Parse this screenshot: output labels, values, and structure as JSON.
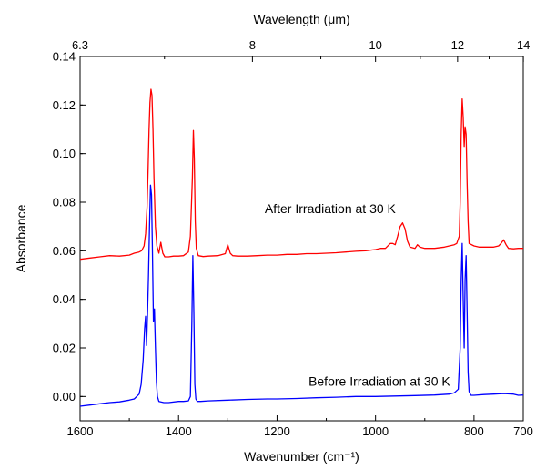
{
  "chart_data": {
    "type": "line",
    "title": "",
    "xlabel": "Wavenumber (cm⁻¹)",
    "ylabel": "Absorbance",
    "top_xlabel": "Wavelength (μm)",
    "xlim": [
      1600,
      700
    ],
    "ylim": [
      -0.01,
      0.14
    ],
    "x_ticks": [
      1600,
      1400,
      1200,
      1000,
      800,
      700
    ],
    "y_ticks": [
      0.0,
      0.02,
      0.04,
      0.06,
      0.08,
      0.1,
      0.12,
      0.14
    ],
    "y_tick_labels": [
      "0.00",
      "0.02",
      "0.04",
      "0.06",
      "0.08",
      "0.10",
      "0.12",
      "0.14"
    ],
    "top_ticks": [
      {
        "label": "6.3",
        "wavelength_um": 6.25
      },
      {
        "label": "8",
        "wavelength_um": 8
      },
      {
        "label": "10",
        "wavelength_um": 10
      },
      {
        "label": "12",
        "wavelength_um": 12
      },
      {
        "label": "14",
        "wavelength_um": 14.29
      }
    ],
    "grid": false,
    "series": [
      {
        "color": "#ff0000",
        "annotation": "After Irradiation at 30 K",
        "annotation_pos": [
          1225,
          0.0755
        ],
        "x": [
          1600,
          1580,
          1560,
          1540,
          1520,
          1500,
          1490,
          1480,
          1475,
          1470,
          1467,
          1464,
          1462,
          1460,
          1458,
          1456,
          1454,
          1452,
          1450,
          1447,
          1444,
          1440,
          1436,
          1432,
          1428,
          1420,
          1410,
          1400,
          1390,
          1380,
          1376,
          1372,
          1370,
          1368,
          1366,
          1364,
          1360,
          1350,
          1340,
          1320,
          1305,
          1300,
          1295,
          1290,
          1280,
          1260,
          1240,
          1220,
          1200,
          1180,
          1160,
          1140,
          1120,
          1100,
          1080,
          1060,
          1040,
          1020,
          1000,
          990,
          980,
          970,
          965,
          960,
          955,
          950,
          945,
          940,
          935,
          930,
          920,
          915,
          910,
          900,
          880,
          860,
          850,
          840,
          835,
          830,
          828,
          826,
          824,
          822,
          820,
          818,
          816,
          814,
          812,
          810,
          800,
          790,
          780,
          760,
          750,
          745,
          740,
          735,
          730,
          720,
          710,
          700
        ],
        "y": [
          0.0565,
          0.057,
          0.0575,
          0.058,
          0.0578,
          0.0582,
          0.059,
          0.0595,
          0.06,
          0.062,
          0.067,
          0.078,
          0.093,
          0.11,
          0.121,
          0.1265,
          0.124,
          0.11,
          0.09,
          0.07,
          0.062,
          0.059,
          0.0635,
          0.059,
          0.0575,
          0.0575,
          0.0578,
          0.0578,
          0.058,
          0.0595,
          0.066,
          0.09,
          0.1095,
          0.098,
          0.072,
          0.061,
          0.058,
          0.0576,
          0.0578,
          0.058,
          0.0588,
          0.0625,
          0.059,
          0.058,
          0.0578,
          0.0578,
          0.058,
          0.0582,
          0.0582,
          0.0585,
          0.0585,
          0.0588,
          0.0588,
          0.059,
          0.0592,
          0.0595,
          0.0598,
          0.06,
          0.0605,
          0.061,
          0.061,
          0.063,
          0.063,
          0.0625,
          0.066,
          0.07,
          0.0715,
          0.069,
          0.064,
          0.0615,
          0.061,
          0.0625,
          0.0615,
          0.061,
          0.061,
          0.0615,
          0.062,
          0.0625,
          0.063,
          0.066,
          0.08,
          0.108,
          0.1225,
          0.115,
          0.103,
          0.111,
          0.108,
          0.088,
          0.072,
          0.063,
          0.062,
          0.0615,
          0.0615,
          0.0615,
          0.062,
          0.063,
          0.0645,
          0.0625,
          0.061,
          0.0608,
          0.061,
          0.061
        ]
      },
      {
        "color": "#0000ff",
        "annotation": "Before Irradiation at 30 K",
        "annotation_pos": [
          1136,
          0.0045
        ],
        "x": [
          1600,
          1580,
          1560,
          1540,
          1520,
          1500,
          1490,
          1480,
          1476,
          1472,
          1469,
          1467,
          1465,
          1463,
          1461,
          1459,
          1457,
          1455,
          1453,
          1451,
          1449,
          1447,
          1445,
          1443,
          1440,
          1430,
          1420,
          1400,
          1390,
          1380,
          1376,
          1373,
          1371,
          1369,
          1367,
          1365,
          1362,
          1355,
          1340,
          1300,
          1260,
          1220,
          1200,
          1160,
          1120,
          1080,
          1040,
          1000,
          960,
          920,
          880,
          850,
          840,
          832,
          828,
          826,
          824,
          822,
          820,
          818,
          816,
          814,
          812,
          810,
          806,
          800,
          780,
          760,
          740,
          720,
          710,
          700
        ],
        "y": [
          -0.004,
          -0.0035,
          -0.003,
          -0.0025,
          -0.0022,
          -0.0015,
          -0.001,
          0.001,
          0.005,
          0.015,
          0.028,
          0.033,
          0.021,
          0.034,
          0.05,
          0.07,
          0.087,
          0.083,
          0.06,
          0.031,
          0.036,
          0.02,
          0.006,
          0.0,
          -0.002,
          -0.0025,
          -0.0025,
          -0.002,
          -0.002,
          -0.0018,
          0.0,
          0.03,
          0.058,
          0.035,
          0.005,
          -0.001,
          -0.002,
          -0.002,
          -0.0018,
          -0.0015,
          -0.0012,
          -0.001,
          -0.001,
          -0.0008,
          -0.0005,
          -0.0003,
          0.0,
          0.0,
          0.0002,
          0.0004,
          0.0006,
          0.001,
          0.0015,
          0.003,
          0.02,
          0.048,
          0.063,
          0.04,
          0.02,
          0.048,
          0.058,
          0.035,
          0.01,
          0.002,
          0.0005,
          0.0005,
          0.0008,
          0.001,
          0.0012,
          0.001,
          0.0005,
          0.0006
        ]
      }
    ]
  }
}
